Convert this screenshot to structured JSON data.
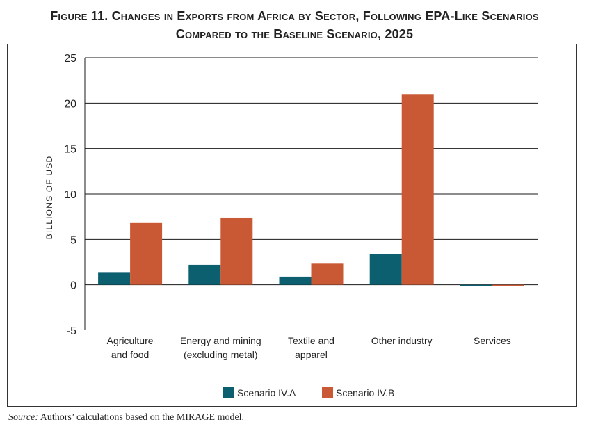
{
  "figure": {
    "title_line1": "Figure 11. Changes in Exports from Africa by Sector, Following EPA-Like Scenarios",
    "title_line2": "Compared to the Baseline Scenario, 2025",
    "source_label": "Source:",
    "source_text": " Authors’ calculations based on the MIRAGE model."
  },
  "chart_data": {
    "type": "bar",
    "title": "Changes in Exports from Africa by Sector, Following EPA-Like Scenarios Compared to the Baseline Scenario, 2025",
    "xlabel": "",
    "ylabel": "BILLIONS OF USD",
    "ylim": [
      -5,
      25
    ],
    "yticks": [
      -5,
      0,
      5,
      10,
      15,
      20,
      25
    ],
    "grid": true,
    "legend_position": "bottom",
    "categories": [
      [
        "Agriculture",
        "and food"
      ],
      [
        "Energy and mining",
        "(excluding metal)"
      ],
      [
        "Textile and",
        "apparel"
      ],
      [
        "Other industry"
      ],
      [
        "Services"
      ]
    ],
    "series": [
      {
        "name": "Scenario IV.A",
        "color": "#0b5f6e",
        "values": [
          1.4,
          2.2,
          0.9,
          3.4,
          -0.1
        ]
      },
      {
        "name": "Scenario IV.B",
        "color": "#c95834",
        "values": [
          6.8,
          7.4,
          2.4,
          21.0,
          -0.1
        ]
      }
    ]
  }
}
